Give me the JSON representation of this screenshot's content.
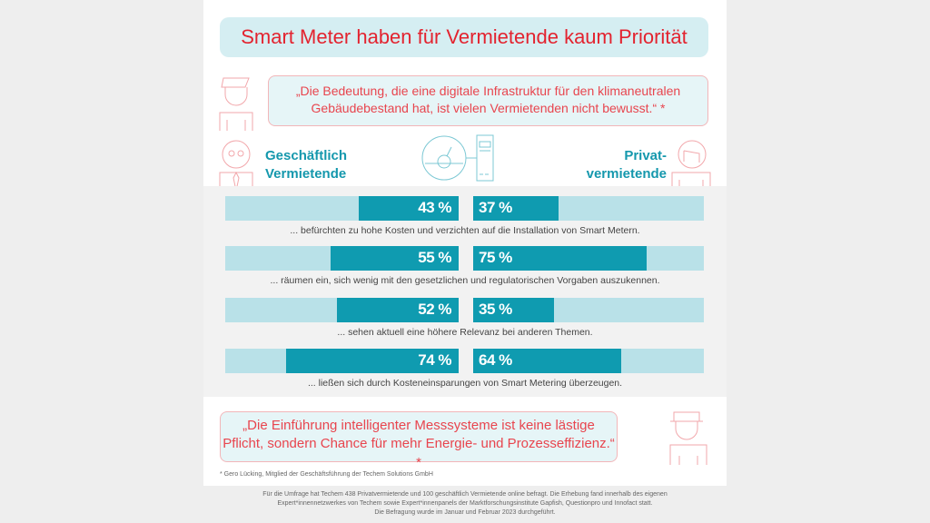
{
  "title": "Smart Meter haben für Vermietende kaum Priorität",
  "quote_top": "„Die Bedeutung, die eine digitale Infrastruktur für den klimaneutralen Gebäudebestand hat, ist vielen Vermietenden nicht bewusst.“ *",
  "quote_bottom": "„Die Einführung intelligenter Messsysteme ist keine lästige Pflicht, sondern Chance für mehr Energie- und Prozesseffizienz.“ *",
  "footnote": "* Gero Lücking, Mitglied der Geschäftsführung der Techem Solutions GmbH",
  "footer": [
    "Für die Umfrage hat Techem 438 Privatvermietende und 100 geschäftlich Vermietende online befragt. Die Erhebung fand innerhalb des eigenen",
    "Expert*innennetzwerkes von Techem sowie Expert*innenpanels der Marktforschungsinstitute Gapfish, Questionpro und Innofact statt.",
    "Die Befragung wurde im Januar und Februar 2023 durchgeführt."
  ],
  "colors": {
    "title": "#e3232f",
    "bar_fill": "#0f9bb0",
    "bar_track": "#b9e1e8",
    "group_label": "#1598ad"
  },
  "chart_data": {
    "type": "bar",
    "orientation": "horizontal diverging",
    "unit": "%",
    "series": [
      {
        "name": "Geschäftlich Vermietende",
        "values": [
          43,
          55,
          52,
          74
        ]
      },
      {
        "name": "Privatvermietende",
        "values": [
          37,
          75,
          35,
          64
        ]
      }
    ],
    "series_labels": [
      "Geschäftlich\nVermietende",
      "Privat-\nvermietende"
    ],
    "categories": [
      "... befürchten zu hohe Kosten und verzichten auf die Installation von Smart Metern.",
      "... räumen ein, sich wenig mit den gesetzlichen und regulatorischen Vorgaben auszukennen.",
      "... sehen aktuell eine höhere Relevanz bei anderen Themen.",
      "... ließen sich durch Kosteneinsparungen von Smart Metering überzeugen."
    ],
    "value_labels_left": [
      "43 %",
      "55 %",
      "52 %",
      "74 %"
    ],
    "value_labels_right": [
      "37 %",
      "75 %",
      "35 %",
      "64 %"
    ],
    "xlim": [
      0,
      100
    ]
  }
}
